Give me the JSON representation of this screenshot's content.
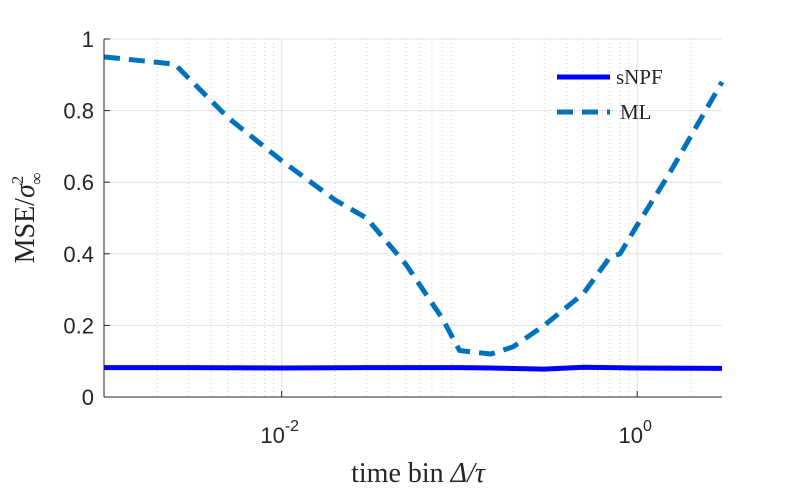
{
  "chart_data": {
    "type": "line",
    "xscale": "log",
    "xlim": [
      0.001,
      3
    ],
    "ylim": [
      0,
      1
    ],
    "xticks": [
      {
        "value": 0.01,
        "base": "10",
        "exp": "-2"
      },
      {
        "value": 1,
        "base": "10",
        "exp": "0"
      }
    ],
    "yticks": [
      {
        "value": 0,
        "label": "0"
      },
      {
        "value": 0.2,
        "label": "0.2"
      },
      {
        "value": 0.4,
        "label": "0.4"
      },
      {
        "value": 0.6,
        "label": "0.6"
      },
      {
        "value": 0.8,
        "label": "0.8"
      },
      {
        "value": 1,
        "label": "1"
      }
    ],
    "xlabel": {
      "prefix": "time bin ",
      "symbol": "Δ/τ"
    },
    "ylabel": {
      "prefix": "MSE/",
      "symbol": "σ",
      "sup": "2",
      "sub": "∞"
    },
    "grid": true,
    "minor_grid": true,
    "legend_position": "top-right",
    "series": [
      {
        "name": "sNPF",
        "style": "solid",
        "color": "#0000ff",
        "x": [
          0.001,
          0.003,
          0.01,
          0.03,
          0.1,
          0.15,
          0.3,
          0.5,
          1,
          3
        ],
        "y": [
          0.082,
          0.082,
          0.081,
          0.082,
          0.082,
          0.081,
          0.078,
          0.083,
          0.081,
          0.08
        ]
      },
      {
        "name": "ML",
        "style": "dashed",
        "color": "#0072bd",
        "x": [
          0.001,
          0.0025,
          0.005,
          0.01,
          0.02,
          0.03,
          0.05,
          0.08,
          0.1,
          0.15,
          0.2,
          0.3,
          0.5,
          0.7,
          0.8,
          1,
          1.5,
          3
        ],
        "y": [
          0.95,
          0.93,
          0.78,
          0.66,
          0.55,
          0.5,
          0.37,
          0.22,
          0.13,
          0.12,
          0.14,
          0.2,
          0.29,
          0.39,
          0.4,
          0.48,
          0.62,
          0.88
        ]
      }
    ]
  }
}
